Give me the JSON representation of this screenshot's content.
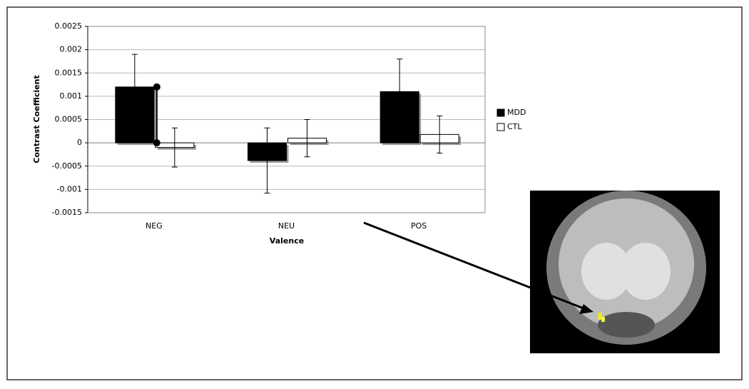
{
  "chart_data": {
    "type": "bar",
    "x_label": "Valence",
    "y_label": "Contrast Coefficient",
    "categories": [
      "NEG",
      "NEU",
      "POS"
    ],
    "series": [
      {
        "name": "MDD",
        "color": "#000000",
        "values": [
          0.0012,
          -0.00038,
          0.0011
        ],
        "errors": [
          0.0007,
          0.0007,
          0.0007
        ]
      },
      {
        "name": "CTL",
        "color": "#ffffff",
        "values": [
          -0.0001,
          0.0001,
          0.00018
        ],
        "errors": [
          0.00042,
          0.0004,
          0.0004
        ]
      }
    ],
    "ylim": [
      -0.0015,
      0.0025
    ],
    "yticks": [
      -0.0015,
      -0.001,
      -0.0005,
      0,
      0.0005,
      0.001,
      0.0015,
      0.002,
      0.0025
    ],
    "grid": true,
    "legend": "right"
  }
}
